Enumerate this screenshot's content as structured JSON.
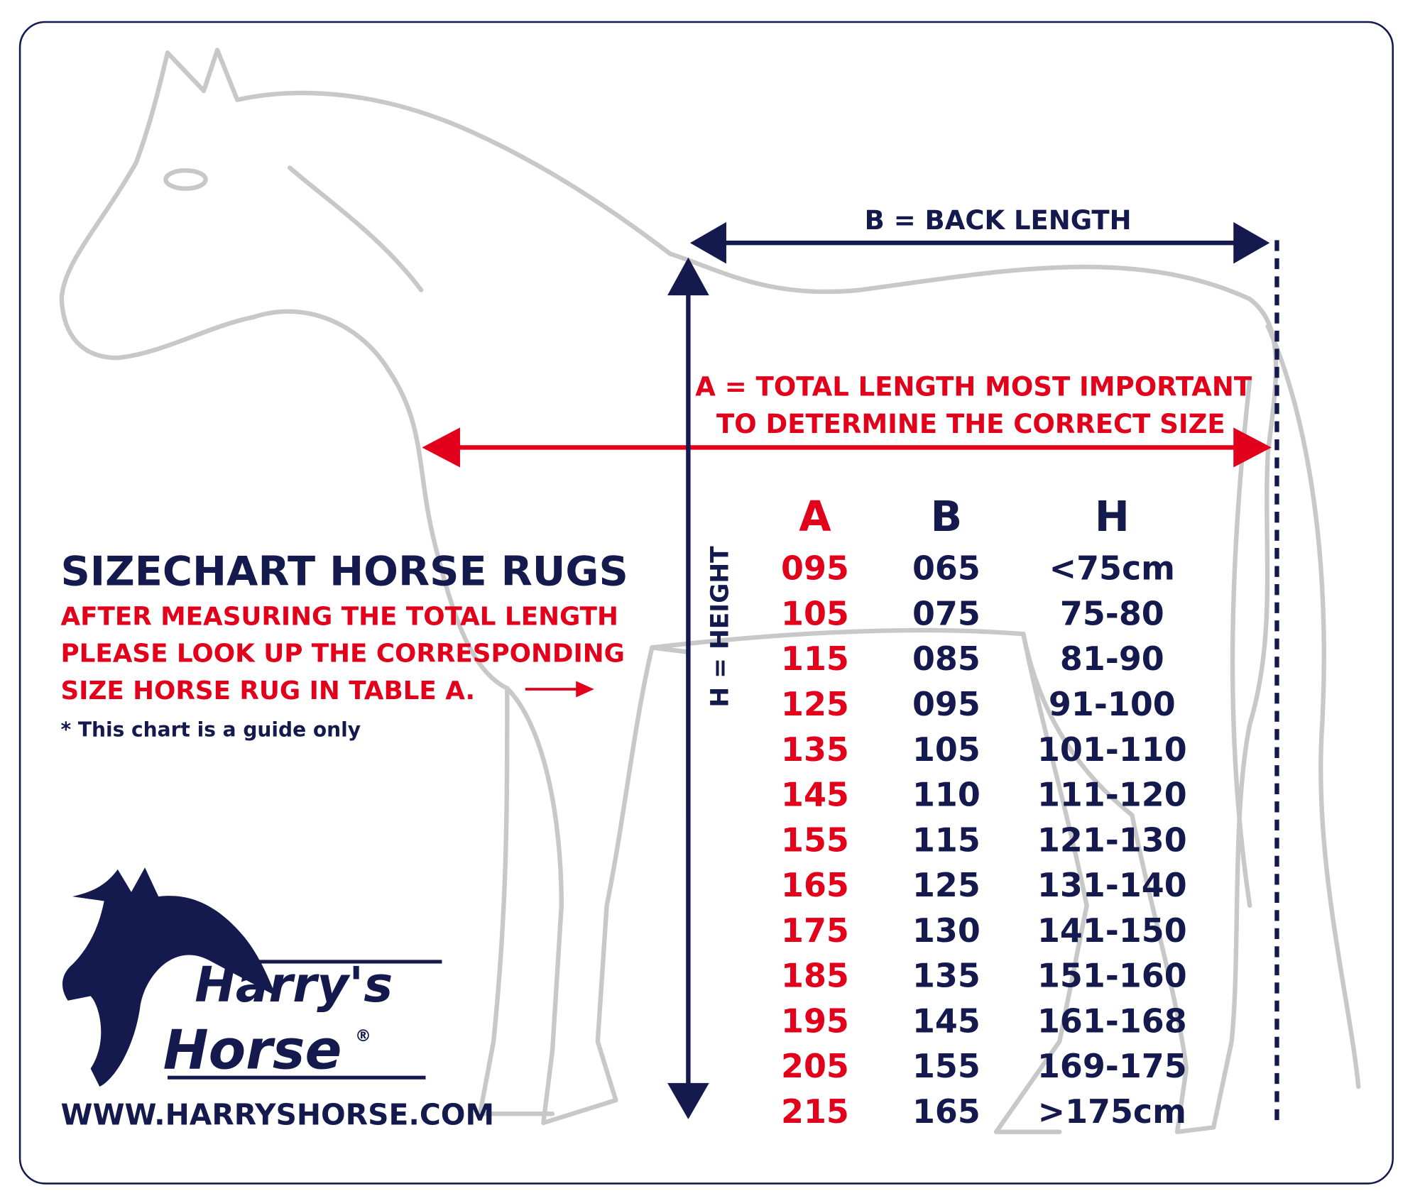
{
  "colors": {
    "navy": "#141a4e",
    "red": "#e2001a",
    "horse_outline": "#c8c8c8"
  },
  "measures": {
    "back_length": "B = BACK LENGTH",
    "total_length_line1": "A = TOTAL LENGTH MOST IMPORTANT",
    "total_length_line2": "TO DETERMINE THE CORRECT SIZE",
    "height": "H = HEIGHT"
  },
  "intro": {
    "title": "SIZECHART HORSE RUGS",
    "instruction_lines": [
      "AFTER MEASURING THE TOTAL LENGTH",
      "PLEASE LOOK UP THE CORRESPONDING",
      "SIZE HORSE RUG IN TABLE A."
    ],
    "note": "* This chart is a guide only"
  },
  "logo": {
    "line1": "Harry's",
    "line2": "Horse",
    "registered": "®"
  },
  "website": "WWW.HARRYSHORSE.COM",
  "table": {
    "headers": [
      "A",
      "B",
      "H"
    ],
    "rows": [
      [
        "095",
        "065",
        "<75cm"
      ],
      [
        "105",
        "075",
        "75-80"
      ],
      [
        "115",
        "085",
        "81-90"
      ],
      [
        "125",
        "095",
        "91-100"
      ],
      [
        "135",
        "105",
        "101-110"
      ],
      [
        "145",
        "110",
        "111-120"
      ],
      [
        "155",
        "115",
        "121-130"
      ],
      [
        "165",
        "125",
        "131-140"
      ],
      [
        "175",
        "130",
        "141-150"
      ],
      [
        "185",
        "135",
        "151-160"
      ],
      [
        "195",
        "145",
        "161-168"
      ],
      [
        "205",
        "155",
        "169-175"
      ],
      [
        "215",
        "165",
        ">175cm"
      ]
    ]
  }
}
